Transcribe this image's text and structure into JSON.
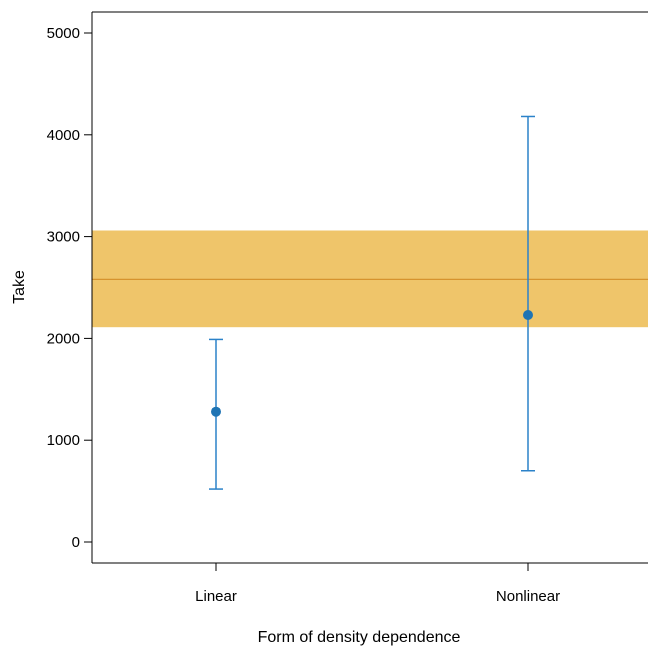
{
  "chart_data": {
    "type": "scatter",
    "title": "",
    "xlabel": "Form of density dependence",
    "ylabel": "Take",
    "ylim": [
      -200,
      5200
    ],
    "yticks": [
      0,
      1000,
      2000,
      3000,
      4000,
      5000
    ],
    "categories": [
      "Linear",
      "Nonlinear"
    ],
    "points": [
      {
        "category": "Linear",
        "value": 1280,
        "lower": 520,
        "upper": 1990
      },
      {
        "category": "Nonlinear",
        "value": 2230,
        "lower": 700,
        "upper": 4180
      }
    ],
    "reference": {
      "value": 2580,
      "lower": 2110,
      "upper": 3060
    },
    "grid": false,
    "colors": {
      "point": "#1f74b4",
      "errorbar": "#2b82c9",
      "band_fill": "#efc56a",
      "band_line": "#d6932e",
      "axis": "#000000"
    }
  }
}
